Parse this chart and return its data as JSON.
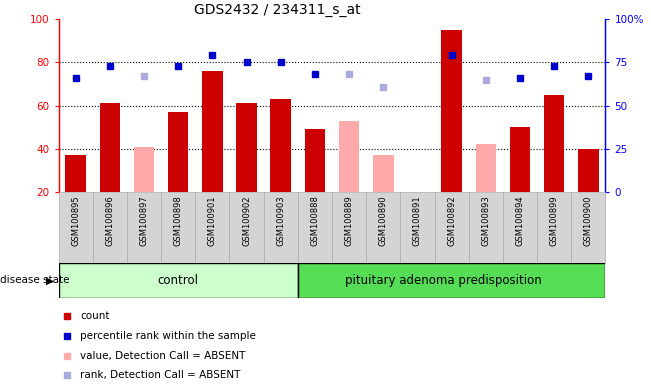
{
  "title": "GDS2432 / 234311_s_at",
  "samples": [
    "GSM100895",
    "GSM100896",
    "GSM100897",
    "GSM100898",
    "GSM100901",
    "GSM100902",
    "GSM100903",
    "GSM100888",
    "GSM100889",
    "GSM100890",
    "GSM100891",
    "GSM100892",
    "GSM100893",
    "GSM100894",
    "GSM100899",
    "GSM100900"
  ],
  "count_values": [
    37,
    61,
    null,
    57,
    76,
    61,
    63,
    49,
    null,
    null,
    null,
    95,
    null,
    50,
    65,
    40
  ],
  "count_absent": [
    null,
    null,
    41,
    null,
    null,
    null,
    null,
    null,
    53,
    37,
    null,
    null,
    42,
    null,
    null,
    null
  ],
  "percentile_values": [
    66,
    73,
    null,
    73,
    79,
    75,
    75,
    68,
    null,
    null,
    null,
    79,
    null,
    66,
    73,
    67
  ],
  "percentile_absent": [
    null,
    null,
    67,
    null,
    null,
    null,
    null,
    null,
    68,
    61,
    null,
    null,
    65,
    null,
    null,
    null
  ],
  "n_control": 7,
  "bar_color_red": "#cc0000",
  "bar_color_pink": "#ffaaaa",
  "dot_color_blue": "#0000cc",
  "dot_color_lightblue": "#aaaadd",
  "control_bg_light": "#ccffcc",
  "disease_bg_green": "#55dd55",
  "label_bg": "#d4d4d4",
  "control_label": "control",
  "disease_label": "pituitary adenoma predisposition",
  "disease_state_label": "disease state",
  "legend_items": [
    "count",
    "percentile rank within the sample",
    "value, Detection Call = ABSENT",
    "rank, Detection Call = ABSENT"
  ],
  "ylim_left": [
    20,
    100
  ],
  "yticks_left": [
    20,
    40,
    60,
    80,
    100
  ],
  "ytick_right_labels": [
    "0",
    "25",
    "50",
    "75",
    "100%"
  ],
  "background_color": "#ffffff"
}
